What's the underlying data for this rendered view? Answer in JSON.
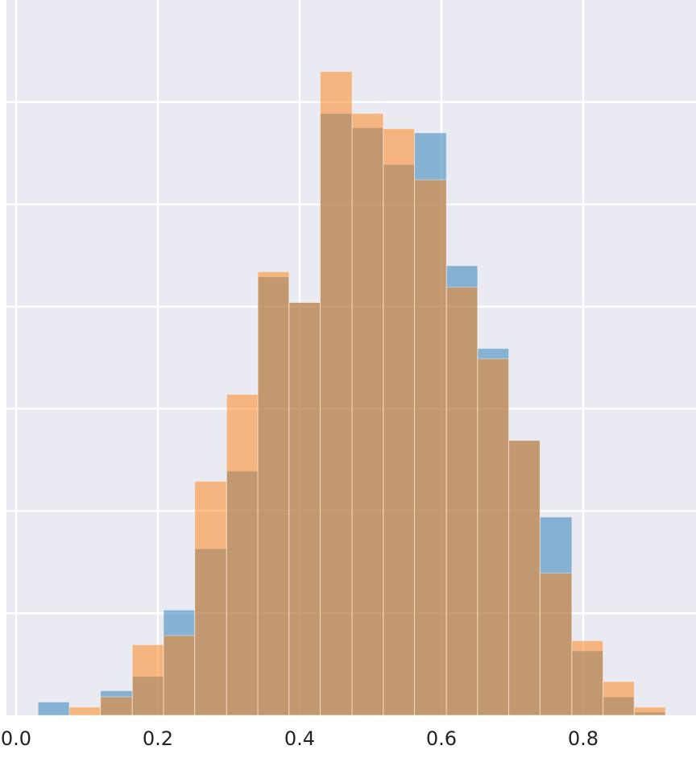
{
  "chart_data": {
    "type": "histogram",
    "bins": [
      0.031,
      0.075,
      0.119,
      0.164,
      0.208,
      0.252,
      0.297,
      0.341,
      0.385,
      0.429,
      0.474,
      0.518,
      0.562,
      0.607,
      0.651,
      0.695,
      0.739,
      0.784,
      0.828,
      0.872,
      0.916
    ],
    "series": [
      {
        "color": "#1f77b4",
        "values": [
          1.3,
          0,
          2.4,
          3.8,
          10.3,
          16.3,
          23.9,
          42.9,
          40.4,
          58.9,
          57.5,
          53.9,
          57.0,
          44.0,
          35.9,
          26.9,
          19.4,
          6.3,
          1.8,
          0.3
        ]
      },
      {
        "color": "#ff7f0e",
        "values": [
          0,
          0.8,
          1.8,
          6.9,
          7.8,
          22.9,
          31.4,
          43.4,
          40.4,
          63.0,
          58.9,
          57.4,
          52.4,
          41.9,
          34.9,
          26.9,
          13.9,
          7.3,
          3.3,
          0.8
        ]
      }
    ],
    "opacity": 0.5,
    "xlim": [
      -0.0136,
      0.9591
    ],
    "ylim": [
      0,
      70
    ],
    "xticks": [
      {
        "value": 0,
        "label": "0.0"
      },
      0.2,
      0.4,
      0.6,
      0.8
    ],
    "ygrid": [
      10,
      20,
      30,
      40,
      50,
      60
    ],
    "grid": true,
    "background": "#eaeaf2"
  }
}
